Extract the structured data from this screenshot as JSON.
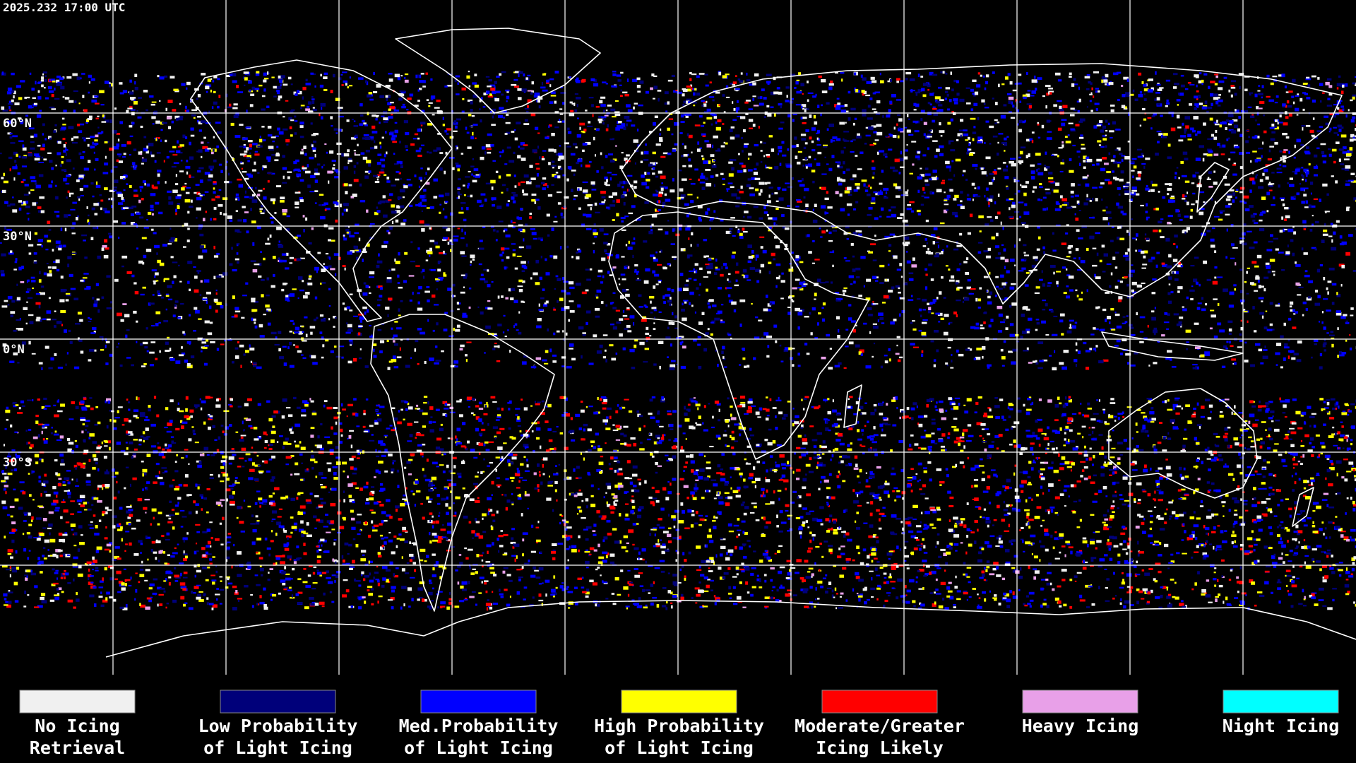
{
  "timestamp": "2025.232 17:00 UTC",
  "map": {
    "latitude_labels": [
      "60°N",
      "30°N",
      "0°N",
      "30°S"
    ]
  },
  "legend": [
    {
      "label": [
        "No Icing",
        "Retrieval"
      ],
      "color": "#f0f0f0"
    },
    {
      "label": [
        "Low Probability",
        "of Light Icing"
      ],
      "color": "#00007a"
    },
    {
      "label": [
        "Med.Probability",
        "of Light Icing"
      ],
      "color": "#0000ff"
    },
    {
      "label": [
        "High Probability",
        "of Light Icing"
      ],
      "color": "#ffff00"
    },
    {
      "label": [
        "Moderate/Greater",
        "Icing Likely"
      ],
      "color": "#ff0000"
    },
    {
      "label": [
        "Heavy Icing"
      ],
      "color": "#e8a0e8"
    },
    {
      "label": [
        "Night Icing"
      ],
      "color": "#00ffff"
    }
  ]
}
